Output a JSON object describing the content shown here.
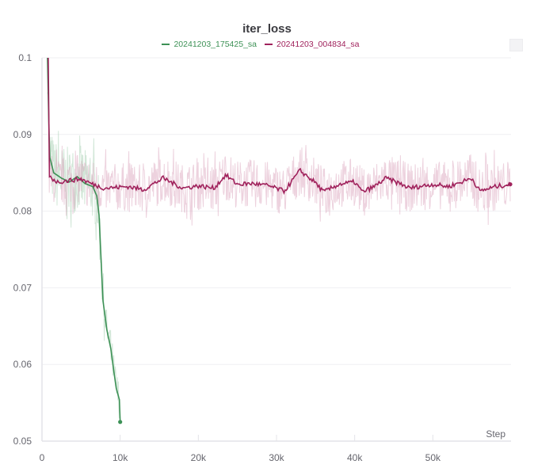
{
  "chart_data": {
    "type": "line",
    "title": "iter_loss",
    "xlabel": "Step",
    "ylabel": "",
    "xlim": [
      0,
      60000
    ],
    "ylim": [
      0.05,
      0.1
    ],
    "xticks": [
      "0",
      "10k",
      "20k",
      "30k",
      "40k",
      "50k"
    ],
    "xtick_values": [
      0,
      10000,
      20000,
      30000,
      40000,
      50000
    ],
    "yticks": [
      "0.05",
      "0.06",
      "0.07",
      "0.08",
      "0.09",
      "0.1"
    ],
    "ytick_values": [
      0.05,
      0.06,
      0.07,
      0.08,
      0.09,
      0.1
    ],
    "grid": true,
    "legend": "top-center",
    "series": [
      {
        "name": "20241203_175425_sa",
        "color": "#3d9156",
        "x": [
          700,
          900,
          1000,
          1500,
          2500,
          3500,
          4500,
          5500,
          6500,
          7000,
          7300,
          7800,
          8300,
          8800,
          9200,
          9500,
          9900,
          10000
        ],
        "y": [
          0.1,
          0.09,
          0.087,
          0.085,
          0.0843,
          0.0838,
          0.0845,
          0.0836,
          0.0832,
          0.082,
          0.0795,
          0.0683,
          0.0645,
          0.0621,
          0.059,
          0.0569,
          0.0554,
          0.0525
        ]
      },
      {
        "name": "20241203_004834_sa",
        "color": "#a0225c",
        "x": [
          800,
          900,
          2000,
          3500,
          5000,
          6500,
          8000,
          11000,
          13000,
          15500,
          18000,
          20000,
          22000,
          23500,
          25000,
          27000,
          29000,
          31000,
          33000,
          35000,
          36000,
          38000,
          40000,
          41000,
          42500,
          44000,
          46000,
          47000,
          50000,
          52000,
          55000,
          56000,
          58000,
          59900
        ],
        "y": [
          0.1,
          0.0845,
          0.0838,
          0.084,
          0.0842,
          0.0835,
          0.083,
          0.0832,
          0.0828,
          0.0843,
          0.083,
          0.0833,
          0.083,
          0.0847,
          0.0835,
          0.0836,
          0.0833,
          0.0826,
          0.0853,
          0.0837,
          0.0825,
          0.0835,
          0.0838,
          0.0825,
          0.0832,
          0.0843,
          0.0835,
          0.083,
          0.0835,
          0.0832,
          0.0843,
          0.0826,
          0.0832,
          0.0835
        ]
      }
    ]
  }
}
